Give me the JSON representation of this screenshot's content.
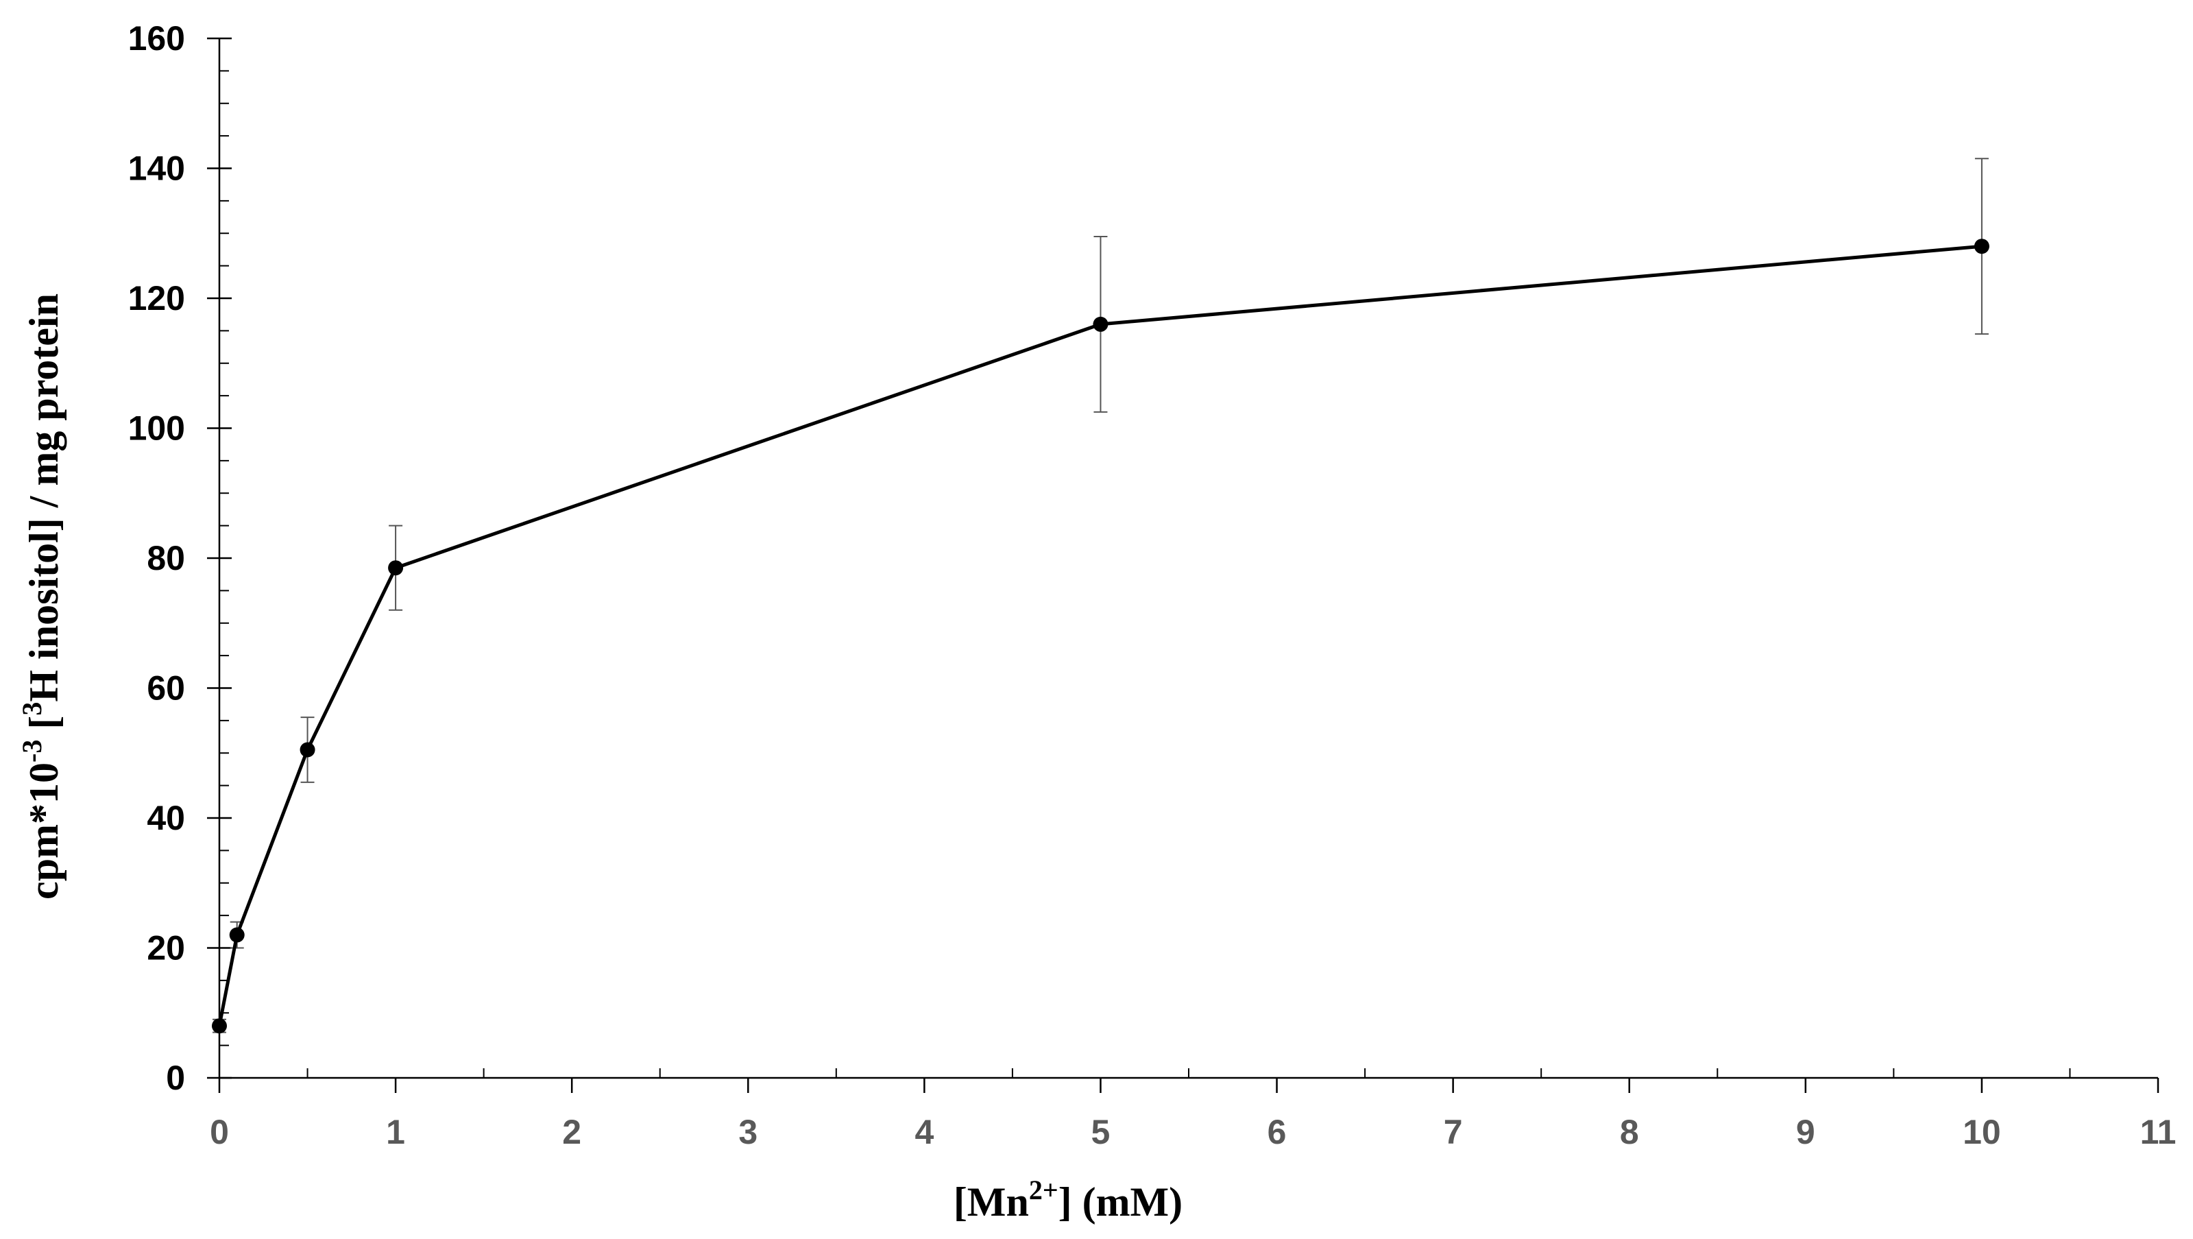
{
  "chart_data": {
    "type": "line",
    "x_axis_label": {
      "main": "[Mn",
      "sup": "2+",
      "tail": "] (mM)"
    },
    "y_axis_label": {
      "pre": "cpm*10",
      "sup1": "-3",
      "mid": " [",
      "sup2": "3",
      "tail": "H inositol] / mg protein"
    },
    "xlim": [
      0,
      11
    ],
    "ylim": [
      0,
      160
    ],
    "x_ticks": [
      0,
      1,
      2,
      3,
      4,
      5,
      6,
      7,
      8,
      9,
      10,
      11
    ],
    "x_tick_labels": [
      "0",
      "1",
      "2",
      "3",
      "4",
      "5",
      "6",
      "7",
      "8",
      "9",
      "10",
      "11"
    ],
    "y_ticks": [
      0,
      20,
      40,
      60,
      80,
      100,
      120,
      140,
      160
    ],
    "y_tick_labels": [
      "0",
      "20",
      "40",
      "60",
      "80",
      "100",
      "120",
      "140",
      "160"
    ],
    "x_minor_step": 0.5,
    "y_minor_step": 5,
    "grid": false,
    "legend": "none",
    "series": [
      {
        "x": [
          0,
          0.1,
          0.5,
          1,
          5,
          10
        ],
        "y": [
          8,
          22,
          50.5,
          78.5,
          116,
          128
        ],
        "error": [
          1,
          2,
          5,
          6.5,
          13.5,
          13.5
        ],
        "color": "#000000",
        "marker": "circle"
      }
    ]
  }
}
